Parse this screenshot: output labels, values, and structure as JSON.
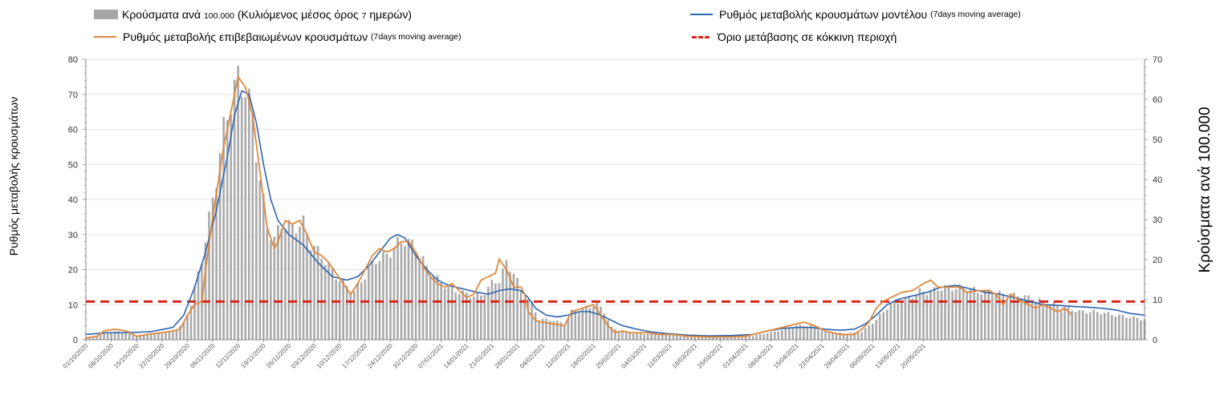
{
  "chart_data": {
    "type": "bar+line",
    "legend": {
      "bars_main": "Κρούσματα ανά",
      "bars_small1": "100.000",
      "bars_rest": "(Κυλιόμενος μέσος όρος",
      "bars_small2": "7",
      "bars_end": "ημερών)",
      "model_main": "Ρυθμός μεταβολής κρουσμάτων μοντέλου",
      "model_small": "(7days moving average)",
      "confirmed_main": "Ρυθμός μεταβολής επιβεβαιωμένων κρουσμάτων",
      "confirmed_small": "(7days moving average)",
      "threshold": "Όριο μετάβασης σε κόκκινη περιοχή"
    },
    "ylabel_left": "Ρυθμός μεταβολής κρουσμάτων",
    "ylabel_right": "Κρούσματα ανά 100.000",
    "y_left_range": [
      0,
      80
    ],
    "y_left_ticks": [
      "0",
      "10",
      "20",
      "30",
      "40",
      "50",
      "60",
      "70",
      "80"
    ],
    "y_right_range": [
      0,
      70
    ],
    "y_right_ticks": [
      "0",
      "10",
      "20",
      "30",
      "40",
      "50",
      "60",
      "70"
    ],
    "x_tick_labels": [
      "01/10/2020",
      "08/10/2020",
      "15/10/2020",
      "22/10/2020",
      "29/10/2020",
      "05/11/2020",
      "12/11/2020",
      "19/11/2020",
      "26/11/2020",
      "03/12/2020",
      "10/12/2020",
      "17/12/2020",
      "24/12/2020",
      "31/12/2020",
      "07/01/2021",
      "14/01/2021",
      "21/01/2021",
      "28/01/2021",
      "04/02/2021",
      "11/02/2021",
      "18/02/2021",
      "25/02/2021",
      "04/03/2021",
      "11/03/2021",
      "18/03/2021",
      "25/03/2021",
      "01/04/2021",
      "08/04/2021",
      "15/04/2021",
      "22/04/2021",
      "29/04/2021",
      "06/05/2021",
      "13/05/2021",
      "20/05/2021"
    ],
    "threshold_value": 10.9,
    "bar_keyframes_day_value": [
      [
        0,
        0.5
      ],
      [
        3,
        1
      ],
      [
        6,
        2
      ],
      [
        12,
        2
      ],
      [
        14,
        1
      ],
      [
        20,
        1.5
      ],
      [
        24,
        2
      ],
      [
        27,
        4
      ],
      [
        29,
        9
      ],
      [
        32,
        20
      ],
      [
        35,
        35
      ],
      [
        38,
        52
      ],
      [
        40,
        60
      ],
      [
        42,
        65
      ],
      [
        44,
        63
      ],
      [
        46,
        55
      ],
      [
        48,
        40
      ],
      [
        50,
        28
      ],
      [
        52,
        25
      ],
      [
        54,
        29
      ],
      [
        57,
        28
      ],
      [
        60,
        29
      ],
      [
        62,
        24
      ],
      [
        65,
        21
      ],
      [
        68,
        17
      ],
      [
        71,
        14
      ],
      [
        74,
        12
      ],
      [
        77,
        16
      ],
      [
        80,
        20
      ],
      [
        83,
        21
      ],
      [
        86,
        24
      ],
      [
        88,
        25
      ],
      [
        91,
        23
      ],
      [
        94,
        18
      ],
      [
        97,
        15
      ],
      [
        100,
        13
      ],
      [
        103,
        12
      ],
      [
        106,
        11
      ],
      [
        109,
        11
      ],
      [
        112,
        14
      ],
      [
        114,
        15
      ],
      [
        116,
        19
      ],
      [
        118,
        17
      ],
      [
        120,
        12
      ],
      [
        123,
        9
      ],
      [
        125,
        5
      ],
      [
        128,
        5
      ],
      [
        132,
        4
      ],
      [
        134,
        7
      ],
      [
        138,
        8
      ],
      [
        141,
        9
      ],
      [
        143,
        7
      ],
      [
        145,
        3
      ],
      [
        148,
        2
      ],
      [
        152,
        1.5
      ],
      [
        158,
        1.5
      ],
      [
        166,
        1
      ],
      [
        172,
        0.8
      ],
      [
        178,
        0.8
      ],
      [
        184,
        1
      ],
      [
        190,
        2
      ],
      [
        196,
        3.5
      ],
      [
        200,
        3.5
      ],
      [
        204,
        2
      ],
      [
        210,
        1.5
      ],
      [
        214,
        2
      ],
      [
        218,
        5
      ],
      [
        222,
        9
      ],
      [
        226,
        10
      ],
      [
        230,
        12
      ],
      [
        233,
        12
      ],
      [
        236,
        13
      ],
      [
        240,
        13
      ],
      [
        243,
        13
      ],
      [
        246,
        12
      ],
      [
        250,
        12
      ],
      [
        254,
        11
      ],
      [
        258,
        11
      ],
      [
        262,
        10
      ],
      [
        266,
        9
      ],
      [
        270,
        8
      ],
      [
        274,
        7
      ],
      [
        278,
        7
      ],
      [
        282,
        6.5
      ],
      [
        285,
        6
      ],
      [
        289,
        5.5
      ],
      [
        292,
        5
      ]
    ],
    "model_keyframes_day_value": [
      [
        0,
        1.5
      ],
      [
        6,
        2
      ],
      [
        12,
        2
      ],
      [
        18,
        2.3
      ],
      [
        24,
        3.5
      ],
      [
        27,
        7
      ],
      [
        30,
        15
      ],
      [
        33,
        25
      ],
      [
        36,
        37
      ],
      [
        39,
        52
      ],
      [
        41,
        64
      ],
      [
        43,
        71
      ],
      [
        45,
        70
      ],
      [
        47,
        62
      ],
      [
        49,
        50
      ],
      [
        51,
        40
      ],
      [
        53,
        34
      ],
      [
        56,
        30
      ],
      [
        60,
        27
      ],
      [
        64,
        22
      ],
      [
        68,
        18
      ],
      [
        72,
        17
      ],
      [
        75,
        18
      ],
      [
        78,
        21
      ],
      [
        81,
        25
      ],
      [
        84,
        29
      ],
      [
        86,
        30
      ],
      [
        88,
        29
      ],
      [
        91,
        24
      ],
      [
        94,
        20
      ],
      [
        97,
        17
      ],
      [
        100,
        15.5
      ],
      [
        104,
        14.5
      ],
      [
        108,
        13.5
      ],
      [
        111,
        13
      ],
      [
        114,
        14
      ],
      [
        117,
        14.5
      ],
      [
        120,
        14
      ],
      [
        122,
        12
      ],
      [
        124,
        9
      ],
      [
        127,
        7
      ],
      [
        130,
        6.5
      ],
      [
        133,
        7
      ],
      [
        136,
        8
      ],
      [
        139,
        8
      ],
      [
        142,
        7
      ],
      [
        145,
        5.5
      ],
      [
        148,
        4
      ],
      [
        152,
        3
      ],
      [
        156,
        2.2
      ],
      [
        160,
        1.8
      ],
      [
        166,
        1.3
      ],
      [
        172,
        1.1
      ],
      [
        178,
        1.2
      ],
      [
        184,
        1.5
      ],
      [
        188,
        2.5
      ],
      [
        192,
        3.2
      ],
      [
        196,
        3.5
      ],
      [
        200,
        3.5
      ],
      [
        204,
        3
      ],
      [
        208,
        2.7
      ],
      [
        212,
        3
      ],
      [
        215,
        4.5
      ],
      [
        218,
        7
      ],
      [
        221,
        10
      ],
      [
        224,
        11.5
      ],
      [
        228,
        12.5
      ],
      [
        232,
        13.5
      ],
      [
        236,
        15
      ],
      [
        240,
        15.5
      ],
      [
        244,
        14.5
      ],
      [
        248,
        13.5
      ],
      [
        252,
        13
      ],
      [
        256,
        12
      ],
      [
        260,
        11
      ],
      [
        264,
        10
      ],
      [
        268,
        9.8
      ],
      [
        272,
        9.5
      ],
      [
        276,
        9.3
      ],
      [
        280,
        9
      ],
      [
        284,
        8.5
      ],
      [
        288,
        7.5
      ],
      [
        292,
        7
      ]
    ],
    "confirmed_keyframes_day_value": [
      [
        0,
        0.5
      ],
      [
        3,
        1
      ],
      [
        5,
        2.5
      ],
      [
        8,
        3
      ],
      [
        11,
        2.5
      ],
      [
        14,
        1
      ],
      [
        17,
        1.5
      ],
      [
        21,
        2
      ],
      [
        24,
        2.5
      ],
      [
        26,
        3
      ],
      [
        28,
        7
      ],
      [
        30,
        10
      ],
      [
        32,
        11
      ],
      [
        33,
        20
      ],
      [
        35,
        35
      ],
      [
        38,
        55
      ],
      [
        41,
        70
      ],
      [
        42,
        75
      ],
      [
        44,
        72
      ],
      [
        46,
        64
      ],
      [
        48,
        48
      ],
      [
        50,
        32
      ],
      [
        52,
        26
      ],
      [
        53,
        28
      ],
      [
        55,
        34
      ],
      [
        57,
        33
      ],
      [
        59,
        34
      ],
      [
        61,
        30
      ],
      [
        63,
        25
      ],
      [
        65,
        24
      ],
      [
        67,
        22
      ],
      [
        69,
        19
      ],
      [
        71,
        16
      ],
      [
        73,
        13
      ],
      [
        75,
        16
      ],
      [
        77,
        20
      ],
      [
        79,
        24
      ],
      [
        81,
        26
      ],
      [
        83,
        25
      ],
      [
        85,
        26
      ],
      [
        87,
        28
      ],
      [
        89,
        28
      ],
      [
        91,
        25
      ],
      [
        93,
        21
      ],
      [
        95,
        18
      ],
      [
        97,
        16
      ],
      [
        99,
        15
      ],
      [
        101,
        16
      ],
      [
        103,
        14
      ],
      [
        105,
        12
      ],
      [
        107,
        13
      ],
      [
        109,
        17
      ],
      [
        111,
        18
      ],
      [
        113,
        19
      ],
      [
        114,
        23
      ],
      [
        116,
        20
      ],
      [
        118,
        15
      ],
      [
        120,
        15
      ],
      [
        121,
        13
      ],
      [
        122,
        8
      ],
      [
        124,
        5.5
      ],
      [
        126,
        5
      ],
      [
        129,
        4.5
      ],
      [
        132,
        4
      ],
      [
        134,
        8
      ],
      [
        137,
        9
      ],
      [
        140,
        10
      ],
      [
        142,
        7
      ],
      [
        144,
        4
      ],
      [
        146,
        2
      ],
      [
        148,
        2.5
      ],
      [
        150,
        2
      ],
      [
        152,
        2
      ],
      [
        155,
        2
      ],
      [
        158,
        1.5
      ],
      [
        162,
        1.5
      ],
      [
        166,
        1
      ],
      [
        172,
        0.8
      ],
      [
        178,
        0.8
      ],
      [
        182,
        1
      ],
      [
        186,
        2
      ],
      [
        190,
        3
      ],
      [
        194,
        4
      ],
      [
        198,
        5
      ],
      [
        201,
        4
      ],
      [
        204,
        2.5
      ],
      [
        208,
        1.5
      ],
      [
        212,
        1.5
      ],
      [
        214,
        3
      ],
      [
        216,
        5
      ],
      [
        218,
        9
      ],
      [
        220,
        11
      ],
      [
        222,
        12
      ],
      [
        225,
        13.5
      ],
      [
        228,
        14
      ],
      [
        231,
        16
      ],
      [
        233,
        17
      ],
      [
        235,
        15
      ],
      [
        238,
        15
      ],
      [
        241,
        15
      ],
      [
        243,
        13.5
      ],
      [
        246,
        14
      ],
      [
        249,
        14
      ],
      [
        251,
        13
      ],
      [
        253,
        10
      ],
      [
        255,
        13
      ],
      [
        257,
        11.5
      ],
      [
        260,
        10
      ],
      [
        262,
        9
      ],
      [
        264,
        10
      ],
      [
        266,
        9
      ],
      [
        268,
        8
      ],
      [
        270,
        9
      ],
      [
        272,
        7
      ]
    ]
  }
}
